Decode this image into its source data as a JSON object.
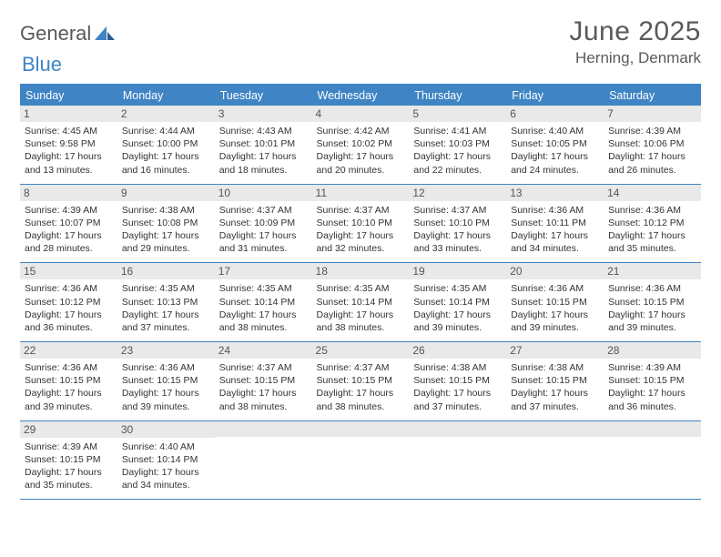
{
  "logo": {
    "word1": "General",
    "word2": "Blue"
  },
  "title": "June 2025",
  "location": "Herning, Denmark",
  "colors": {
    "accent": "#3f84c4",
    "headerText": "#ffffff",
    "dayBarBg": "#e9e9e9",
    "bodyText": "#333333",
    "titleText": "#5a5a5a"
  },
  "daysOfWeek": [
    "Sunday",
    "Monday",
    "Tuesday",
    "Wednesday",
    "Thursday",
    "Friday",
    "Saturday"
  ],
  "weeks": [
    [
      {
        "n": 1,
        "sr": "4:45 AM",
        "ss": "9:58 PM",
        "dl": "17 hours and 13 minutes."
      },
      {
        "n": 2,
        "sr": "4:44 AM",
        "ss": "10:00 PM",
        "dl": "17 hours and 16 minutes."
      },
      {
        "n": 3,
        "sr": "4:43 AM",
        "ss": "10:01 PM",
        "dl": "17 hours and 18 minutes."
      },
      {
        "n": 4,
        "sr": "4:42 AM",
        "ss": "10:02 PM",
        "dl": "17 hours and 20 minutes."
      },
      {
        "n": 5,
        "sr": "4:41 AM",
        "ss": "10:03 PM",
        "dl": "17 hours and 22 minutes."
      },
      {
        "n": 6,
        "sr": "4:40 AM",
        "ss": "10:05 PM",
        "dl": "17 hours and 24 minutes."
      },
      {
        "n": 7,
        "sr": "4:39 AM",
        "ss": "10:06 PM",
        "dl": "17 hours and 26 minutes."
      }
    ],
    [
      {
        "n": 8,
        "sr": "4:39 AM",
        "ss": "10:07 PM",
        "dl": "17 hours and 28 minutes."
      },
      {
        "n": 9,
        "sr": "4:38 AM",
        "ss": "10:08 PM",
        "dl": "17 hours and 29 minutes."
      },
      {
        "n": 10,
        "sr": "4:37 AM",
        "ss": "10:09 PM",
        "dl": "17 hours and 31 minutes."
      },
      {
        "n": 11,
        "sr": "4:37 AM",
        "ss": "10:10 PM",
        "dl": "17 hours and 32 minutes."
      },
      {
        "n": 12,
        "sr": "4:37 AM",
        "ss": "10:10 PM",
        "dl": "17 hours and 33 minutes."
      },
      {
        "n": 13,
        "sr": "4:36 AM",
        "ss": "10:11 PM",
        "dl": "17 hours and 34 minutes."
      },
      {
        "n": 14,
        "sr": "4:36 AM",
        "ss": "10:12 PM",
        "dl": "17 hours and 35 minutes."
      }
    ],
    [
      {
        "n": 15,
        "sr": "4:36 AM",
        "ss": "10:12 PM",
        "dl": "17 hours and 36 minutes."
      },
      {
        "n": 16,
        "sr": "4:35 AM",
        "ss": "10:13 PM",
        "dl": "17 hours and 37 minutes."
      },
      {
        "n": 17,
        "sr": "4:35 AM",
        "ss": "10:14 PM",
        "dl": "17 hours and 38 minutes."
      },
      {
        "n": 18,
        "sr": "4:35 AM",
        "ss": "10:14 PM",
        "dl": "17 hours and 38 minutes."
      },
      {
        "n": 19,
        "sr": "4:35 AM",
        "ss": "10:14 PM",
        "dl": "17 hours and 39 minutes."
      },
      {
        "n": 20,
        "sr": "4:36 AM",
        "ss": "10:15 PM",
        "dl": "17 hours and 39 minutes."
      },
      {
        "n": 21,
        "sr": "4:36 AM",
        "ss": "10:15 PM",
        "dl": "17 hours and 39 minutes."
      }
    ],
    [
      {
        "n": 22,
        "sr": "4:36 AM",
        "ss": "10:15 PM",
        "dl": "17 hours and 39 minutes."
      },
      {
        "n": 23,
        "sr": "4:36 AM",
        "ss": "10:15 PM",
        "dl": "17 hours and 39 minutes."
      },
      {
        "n": 24,
        "sr": "4:37 AM",
        "ss": "10:15 PM",
        "dl": "17 hours and 38 minutes."
      },
      {
        "n": 25,
        "sr": "4:37 AM",
        "ss": "10:15 PM",
        "dl": "17 hours and 38 minutes."
      },
      {
        "n": 26,
        "sr": "4:38 AM",
        "ss": "10:15 PM",
        "dl": "17 hours and 37 minutes."
      },
      {
        "n": 27,
        "sr": "4:38 AM",
        "ss": "10:15 PM",
        "dl": "17 hours and 37 minutes."
      },
      {
        "n": 28,
        "sr": "4:39 AM",
        "ss": "10:15 PM",
        "dl": "17 hours and 36 minutes."
      }
    ],
    [
      {
        "n": 29,
        "sr": "4:39 AM",
        "ss": "10:15 PM",
        "dl": "17 hours and 35 minutes."
      },
      {
        "n": 30,
        "sr": "4:40 AM",
        "ss": "10:14 PM",
        "dl": "17 hours and 34 minutes."
      },
      null,
      null,
      null,
      null,
      null
    ]
  ],
  "labels": {
    "sunrise": "Sunrise:",
    "sunset": "Sunset:",
    "daylight": "Daylight:"
  }
}
